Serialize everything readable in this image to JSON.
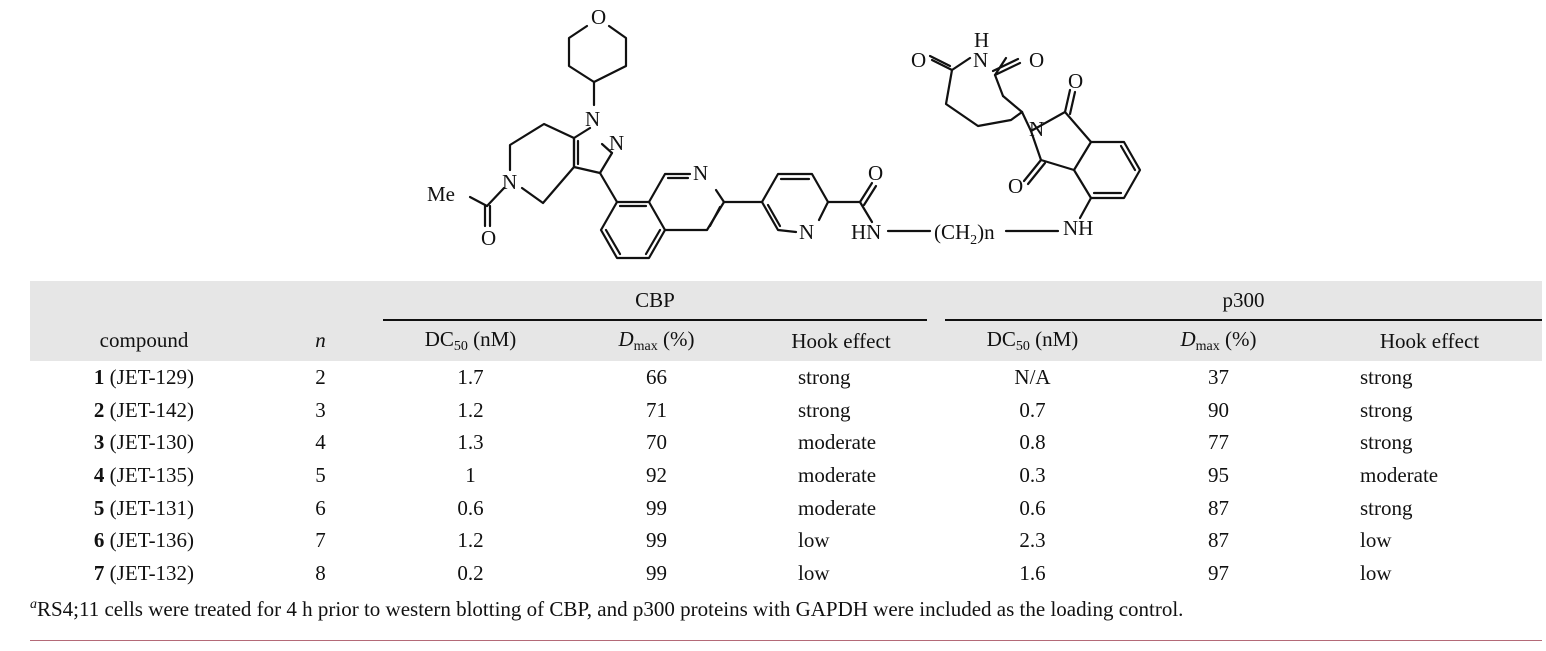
{
  "structure": {
    "atom_labels": {
      "o_pyran": "O",
      "n1": "N",
      "n2": "N",
      "me": "Me",
      "n_ring": "N",
      "o_acetyl": "O",
      "n_isoq": "N",
      "n_pyr": "N",
      "o_amide": "O",
      "hn": "HN",
      "linker": "(CH",
      "linker_sub": "2",
      "linker_n": ")n",
      "nh": "NH",
      "h_imide": "H",
      "n_imide": "N",
      "o_glut_l": "O",
      "o_glut_r": "O",
      "n_phth": "N",
      "o_phth_top": "O",
      "o_phth_bot": "O"
    }
  },
  "table": {
    "group_headers": {
      "cbp": "CBP",
      "p300": "p300"
    },
    "col_headers": {
      "compound": "compound",
      "n": "n",
      "dc50_main": "DC",
      "dc50_sub": "50",
      "dc50_unit": " (nM)",
      "dmax_main": "D",
      "dmax_sub": "max",
      "dmax_unit": " (%)",
      "hook": "Hook effect"
    },
    "rows": [
      {
        "num": "1",
        "code": " (JET-129)",
        "n": "2",
        "cbp_dc50": "1.7",
        "cbp_dmax": "66",
        "cbp_hook": "strong",
        "p300_dc50": "N/A",
        "p300_dmax": "37",
        "p300_hook": "strong"
      },
      {
        "num": "2",
        "code": " (JET-142)",
        "n": "3",
        "cbp_dc50": "1.2",
        "cbp_dmax": "71",
        "cbp_hook": "strong",
        "p300_dc50": "0.7",
        "p300_dmax": "90",
        "p300_hook": "strong"
      },
      {
        "num": "3",
        "code": " (JET-130)",
        "n": "4",
        "cbp_dc50": "1.3",
        "cbp_dmax": "70",
        "cbp_hook": "moderate",
        "p300_dc50": "0.8",
        "p300_dmax": "77",
        "p300_hook": "strong"
      },
      {
        "num": "4",
        "code": " (JET-135)",
        "n": "5",
        "cbp_dc50": "1",
        "cbp_dmax": "92",
        "cbp_hook": "moderate",
        "p300_dc50": "0.3",
        "p300_dmax": "95",
        "p300_hook": "moderate"
      },
      {
        "num": "5",
        "code": " (JET-131)",
        "n": "6",
        "cbp_dc50": "0.6",
        "cbp_dmax": "99",
        "cbp_hook": "moderate",
        "p300_dc50": "0.6",
        "p300_dmax": "87",
        "p300_hook": "strong"
      },
      {
        "num": "6",
        "code": " (JET-136)",
        "n": "7",
        "cbp_dc50": "1.2",
        "cbp_dmax": "99",
        "cbp_hook": "low",
        "p300_dc50": "2.3",
        "p300_dmax": "87",
        "p300_hook": "low"
      },
      {
        "num": "7",
        "code": " (JET-132)",
        "n": "8",
        "cbp_dc50": "0.2",
        "cbp_dmax": "99",
        "cbp_hook": "low",
        "p300_dc50": "1.6",
        "p300_dmax": "97",
        "p300_hook": "low"
      }
    ]
  },
  "footnote": {
    "marker": "a",
    "text": "RS4;11 cells were treated for 4 h prior to western blotting of CBP, and p300 proteins with GAPDH were included as the loading control."
  }
}
